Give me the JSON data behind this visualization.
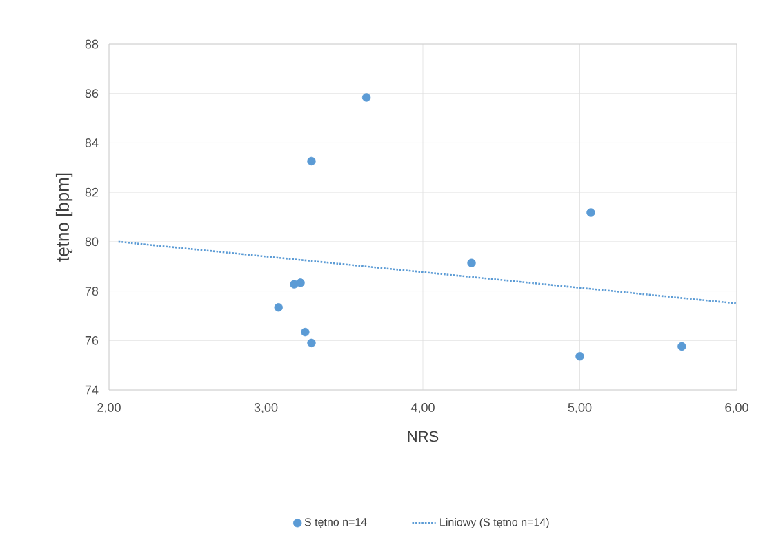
{
  "chart_data": {
    "type": "scatter",
    "xlabel": "NRS",
    "ylabel": "tętno [bpm]",
    "xlim": [
      2,
      6
    ],
    "ylim": [
      74,
      88
    ],
    "xticks": [
      {
        "value": 2,
        "label": "2,00"
      },
      {
        "value": 3,
        "label": "3,00"
      },
      {
        "value": 4,
        "label": "4,00"
      },
      {
        "value": 5,
        "label": "5,00"
      },
      {
        "value": 6,
        "label": "6,00"
      }
    ],
    "yticks": [
      74,
      76,
      78,
      80,
      82,
      84,
      86,
      88
    ],
    "grid": true,
    "legend": "bottom",
    "series": [
      {
        "name": "S tętno n=14",
        "type": "scatter",
        "marker": "circle",
        "color": "#5b9bd5",
        "x": [
          3.64,
          3.29,
          5.07,
          4.31,
          3.18,
          3.22,
          3.08,
          3.25,
          3.29,
          5.0,
          5.65
        ],
        "values": [
          85.84,
          83.26,
          81.18,
          79.14,
          78.28,
          78.34,
          77.34,
          76.34,
          75.9,
          75.36,
          75.76
        ]
      },
      {
        "name": "Liniowy (S tętno n=14)",
        "type": "line",
        "marker": "none",
        "line_style": "dotted",
        "color": "#5b9bd5",
        "x": [
          2.06,
          6
        ],
        "values": [
          80.0,
          77.5
        ]
      }
    ]
  }
}
